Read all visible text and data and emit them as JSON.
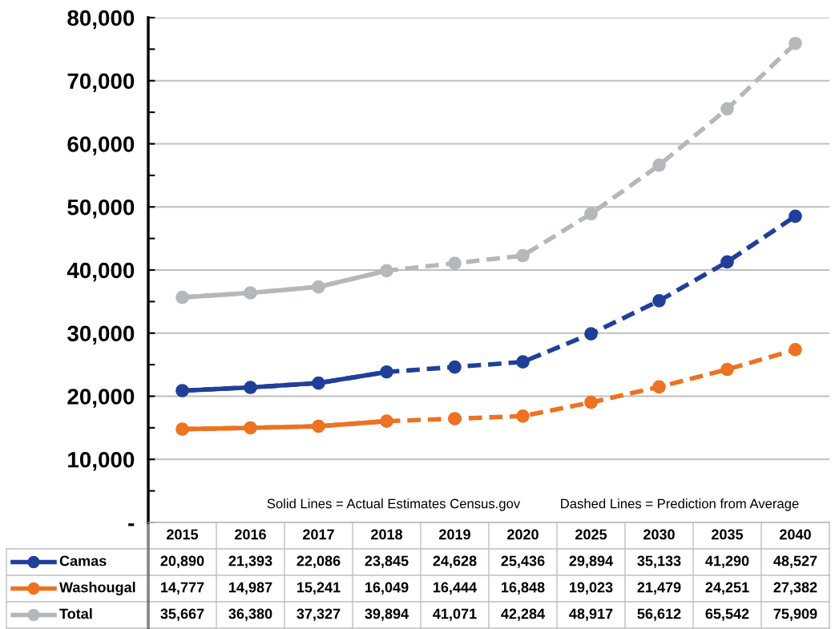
{
  "chart_data": {
    "type": "line",
    "categories": [
      "2015",
      "2016",
      "2017",
      "2018",
      "2019",
      "2020",
      "2025",
      "2030",
      "2035",
      "2040"
    ],
    "series": [
      {
        "name": "Camas",
        "color": "#203f99",
        "line_style": "dashed",
        "values": [
          20890,
          21393,
          22086,
          23845,
          24628,
          25436,
          29894,
          35133,
          41290,
          48527
        ],
        "value_labels": [
          "20,890",
          "21,393",
          "22,086",
          "23,845",
          "24,628",
          "25,436",
          "29,894",
          "35,133",
          "41,290",
          "48,527"
        ]
      },
      {
        "name": "Washougal",
        "color": "#ed7221",
        "line_style": "dashed",
        "values": [
          14777,
          14987,
          15241,
          16049,
          16444,
          16848,
          19023,
          21479,
          24251,
          27382
        ],
        "value_labels": [
          "14,777",
          "14,987",
          "15,241",
          "16,049",
          "16,444",
          "16,848",
          "19,023",
          "21,479",
          "24,251",
          "27,382"
        ]
      },
      {
        "name": "Total",
        "color": "#b4b8bb",
        "line_style": "dashed",
        "values": [
          35667,
          36380,
          37327,
          39894,
          41071,
          42284,
          48917,
          56612,
          65542,
          75909
        ],
        "value_labels": [
          "35,667",
          "36,380",
          "37,327",
          "39,894",
          "41,071",
          "42,284",
          "48,917",
          "56,612",
          "65,542",
          "75,909"
        ]
      },
      {
        "color": "#203f99",
        "line_style": "solid",
        "values": [
          20890,
          21393,
          22086,
          23845,
          null,
          null,
          null,
          null,
          null,
          null
        ]
      },
      {
        "color": "#ed7221",
        "line_style": "solid",
        "values": [
          14777,
          14987,
          15241,
          16049,
          null,
          null,
          null,
          null,
          null,
          null
        ]
      },
      {
        "color": "#b4b8bb",
        "line_style": "solid",
        "values": [
          35667,
          36380,
          37327,
          39894,
          null,
          null,
          null,
          null,
          null,
          null
        ]
      }
    ],
    "ylim": [
      0,
      80000
    ],
    "yticks": [
      {
        "value": 0,
        "label": "-"
      },
      {
        "value": 10000,
        "label": "10,000"
      },
      {
        "value": 20000,
        "label": "20,000"
      },
      {
        "value": 30000,
        "label": "30,000"
      },
      {
        "value": 40000,
        "label": "40,000"
      },
      {
        "value": 50000,
        "label": "50,000"
      },
      {
        "value": 60000,
        "label": "60,000"
      },
      {
        "value": 70000,
        "label": "70,000"
      },
      {
        "value": 80000,
        "label": "80,000"
      }
    ],
    "grid": "y",
    "marker": "circle",
    "legend": "bottom",
    "tick_labels": "y",
    "annotations": [
      "Solid Lines = Actual Estimates Census.gov",
      "Dashed Lines = Prediction from Average"
    ]
  }
}
